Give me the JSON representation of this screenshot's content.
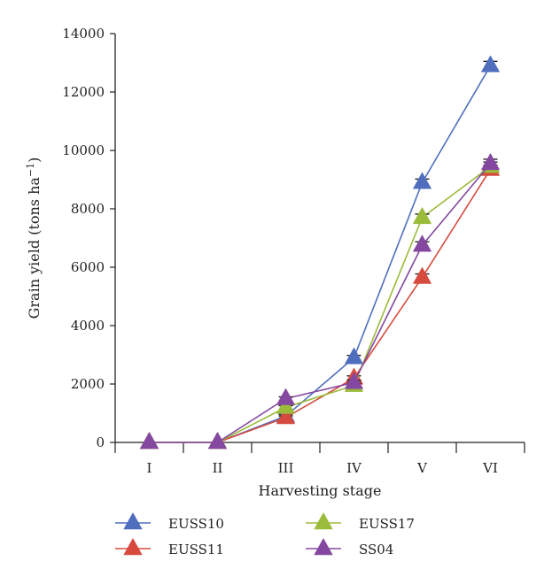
{
  "chart_data": {
    "type": "line",
    "categories": [
      "I",
      "II",
      "III",
      "IV",
      "V",
      "VI"
    ],
    "xlabel": "Harvesting stage",
    "ylabel": {
      "main": "Grain yield (tons ha",
      "sup": "−1",
      "close": ")"
    },
    "ylim": [
      0,
      14000
    ],
    "yticks": [
      0,
      2000,
      4000,
      6000,
      8000,
      10000,
      12000,
      14000
    ],
    "yticks_text": [
      "0",
      "2000",
      "4000",
      "6000",
      "8000",
      "10000",
      "12000",
      "14000"
    ],
    "grid": false,
    "legend_position": "bottom",
    "marker": "triangle",
    "series": [
      {
        "name": "EUSS10",
        "color": "#4f6fbe",
        "values": [
          0,
          0,
          900,
          2900,
          8900,
          12900
        ],
        "errors": [
          0,
          0,
          60,
          80,
          120,
          150
        ]
      },
      {
        "name": "EUSS11",
        "color": "#d64b3e",
        "values": [
          0,
          0,
          850,
          2200,
          5650,
          9350
        ],
        "errors": [
          0,
          0,
          60,
          80,
          120,
          150
        ]
      },
      {
        "name": "EUSS17",
        "color": "#9bbb3a",
        "values": [
          0,
          0,
          1200,
          1950,
          7700,
          9450
        ],
        "errors": [
          0,
          0,
          60,
          80,
          120,
          150
        ]
      },
      {
        "name": "SS04",
        "color": "#8548a0",
        "values": [
          0,
          0,
          1500,
          2050,
          6750,
          9550
        ],
        "errors": [
          0,
          0,
          60,
          80,
          120,
          150
        ]
      }
    ]
  }
}
